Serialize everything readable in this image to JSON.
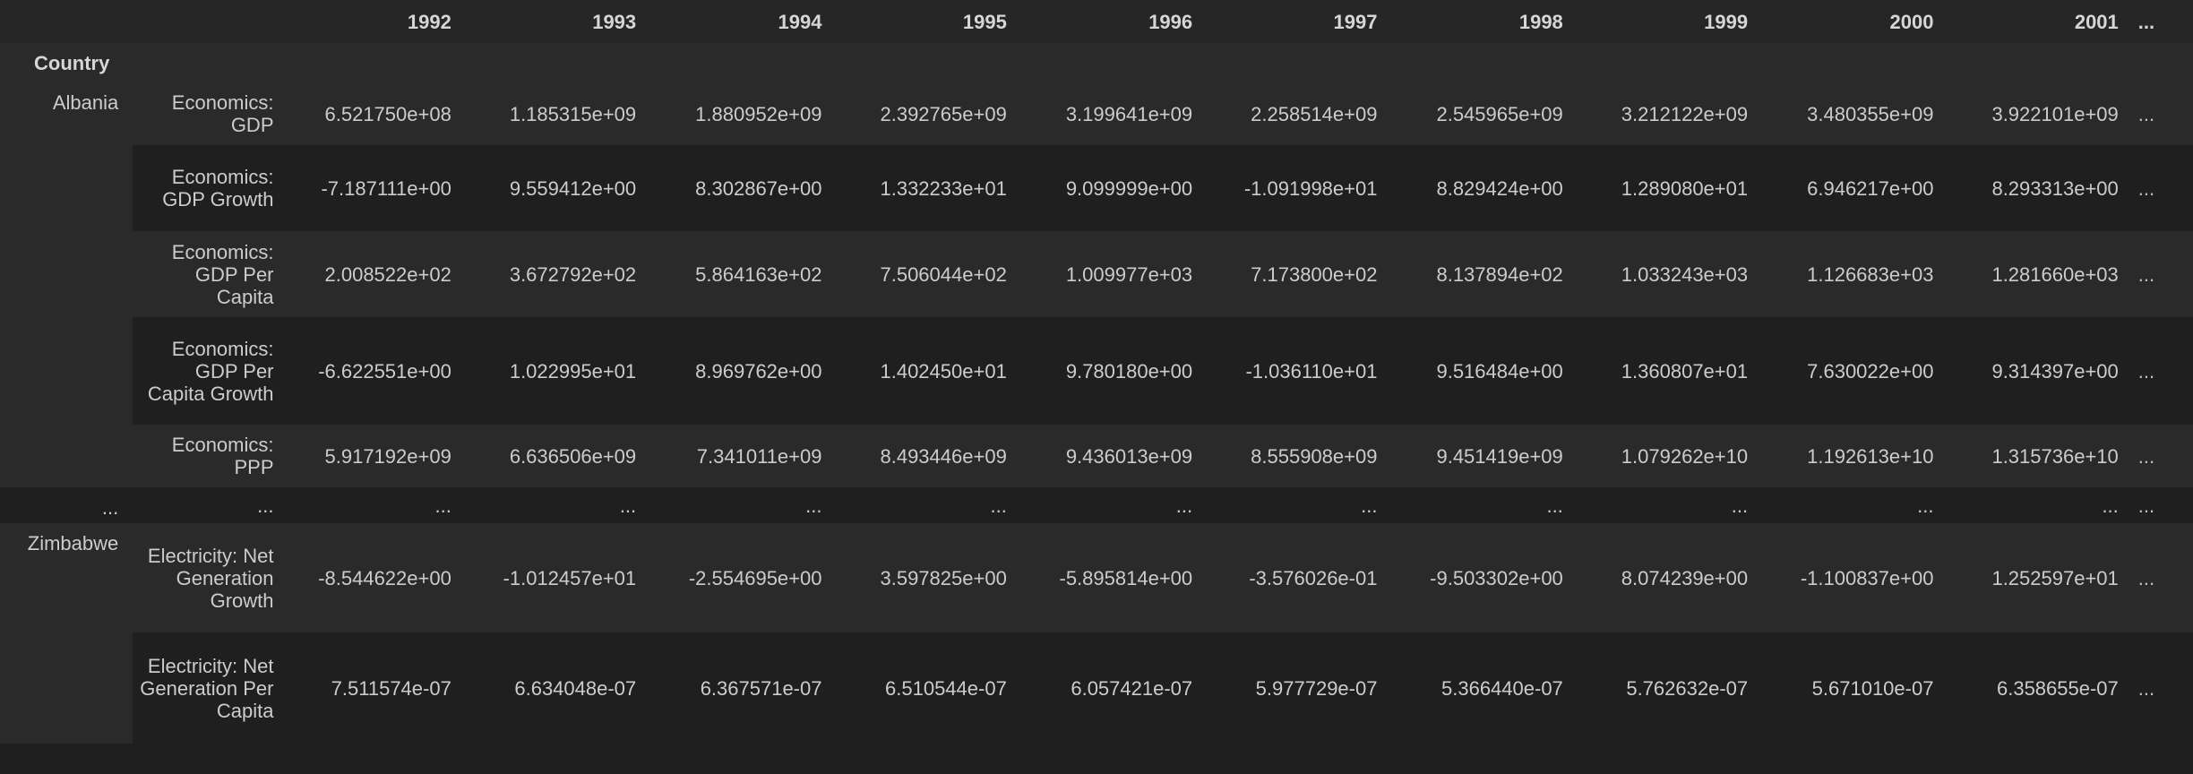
{
  "table": {
    "index_name": "Country",
    "ellipsis": "...",
    "years": [
      "1992",
      "1993",
      "1994",
      "1995",
      "1996",
      "1997",
      "1998",
      "1999",
      "2000",
      "2001"
    ],
    "groups": [
      {
        "country": "Albania",
        "rows": [
          {
            "indicator": "Economics: GDP",
            "values": [
              "6.521750e+08",
              "1.185315e+09",
              "1.880952e+09",
              "2.392765e+09",
              "3.199641e+09",
              "2.258514e+09",
              "2.545965e+09",
              "3.212122e+09",
              "3.480355e+09",
              "3.922101e+09"
            ],
            "more": "..."
          },
          {
            "indicator": "Economics: GDP Growth",
            "values": [
              "-7.187111e+00",
              "9.559412e+00",
              "8.302867e+00",
              "1.332233e+01",
              "9.099999e+00",
              "-1.091998e+01",
              "8.829424e+00",
              "1.289080e+01",
              "6.946217e+00",
              "8.293313e+00"
            ],
            "more": "..."
          },
          {
            "indicator": "Economics: GDP Per Capita",
            "values": [
              "2.008522e+02",
              "3.672792e+02",
              "5.864163e+02",
              "7.506044e+02",
              "1.009977e+03",
              "7.173800e+02",
              "8.137894e+02",
              "1.033243e+03",
              "1.126683e+03",
              "1.281660e+03"
            ],
            "more": "..."
          },
          {
            "indicator": "Economics: GDP Per Capita Growth",
            "values": [
              "-6.622551e+00",
              "1.022995e+01",
              "8.969762e+00",
              "1.402450e+01",
              "9.780180e+00",
              "-1.036110e+01",
              "9.516484e+00",
              "1.360807e+01",
              "7.630022e+00",
              "9.314397e+00"
            ],
            "more": "..."
          },
          {
            "indicator": "Economics: PPP",
            "values": [
              "5.917192e+09",
              "6.636506e+09",
              "7.341011e+09",
              "8.493446e+09",
              "9.436013e+09",
              "8.555908e+09",
              "9.451419e+09",
              "1.079262e+10",
              "1.192613e+10",
              "1.315736e+10"
            ],
            "more": "..."
          }
        ]
      },
      {
        "country": "...",
        "rows": [
          {
            "indicator": "...",
            "values": [
              "...",
              "...",
              "...",
              "...",
              "...",
              "...",
              "...",
              "...",
              "...",
              "..."
            ],
            "more": "..."
          }
        ]
      },
      {
        "country": "Zimbabwe",
        "rows": [
          {
            "indicator": "Electricity: Net Generation Growth",
            "values": [
              "-8.544622e+00",
              "-1.012457e+01",
              "-2.554695e+00",
              "3.597825e+00",
              "-5.895814e+00",
              "-3.576026e-01",
              "-9.503302e+00",
              "8.074239e+00",
              "-1.100837e+00",
              "1.252597e+01"
            ],
            "more": "..."
          },
          {
            "indicator": "Electricity: Net Generation Per Capita",
            "values": [
              "7.511574e-07",
              "6.634048e-07",
              "6.367571e-07",
              "6.510544e-07",
              "6.057421e-07",
              "5.977729e-07",
              "5.366440e-07",
              "5.762632e-07",
              "5.671010e-07",
              "6.358655e-07"
            ],
            "more": "..."
          }
        ]
      }
    ]
  }
}
